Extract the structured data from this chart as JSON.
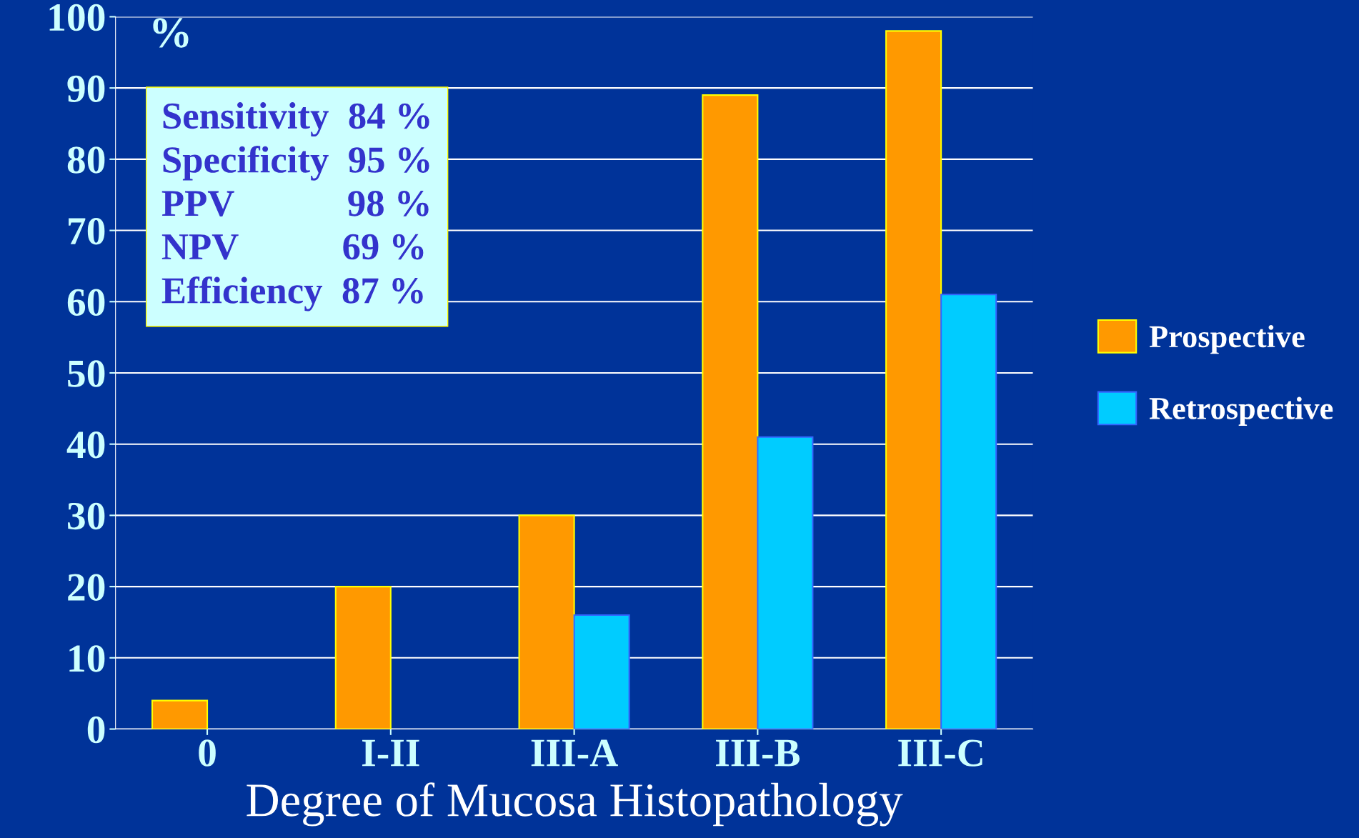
{
  "chart_data": {
    "type": "bar",
    "xlabel": "Degree of Mucosa Histopathology",
    "ylabel": "%",
    "categories": [
      "0",
      "I-II",
      "III-A",
      "III-B",
      "III-C"
    ],
    "series": [
      {
        "name": "Prospective",
        "color": "#ff9900",
        "values": [
          4,
          20,
          30,
          89,
          98
        ]
      },
      {
        "name": "Retrospective",
        "color": "#00ccff",
        "values": [
          null,
          null,
          16,
          41,
          61
        ]
      }
    ],
    "ylim": [
      0,
      100
    ],
    "yticks": [
      0,
      10,
      20,
      30,
      40,
      50,
      60,
      70,
      80,
      90,
      100
    ],
    "grid": "y",
    "legend": "right",
    "annotations": [
      "Sensitivity  84 %",
      "Specificity  95 %",
      "PPV            98 %",
      "NPV           69 %",
      "Efficiency  87 %"
    ]
  }
}
